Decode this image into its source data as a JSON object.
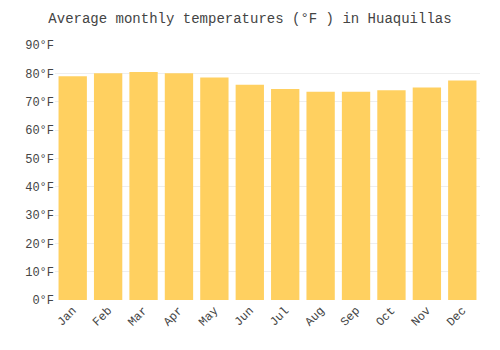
{
  "chart_data": {
    "type": "bar",
    "title": "Average monthly temperatures (°F ) in Huaquillas",
    "categories": [
      "Jan",
      "Feb",
      "Mar",
      "Apr",
      "May",
      "Jun",
      "Jul",
      "Aug",
      "Sep",
      "Oct",
      "Nov",
      "Dec"
    ],
    "values": [
      79,
      80,
      80.5,
      80,
      78.5,
      76,
      74.5,
      73.5,
      73.5,
      74,
      75,
      77.5
    ],
    "color": "#FFD060",
    "ylim": [
      0,
      90
    ],
    "yticks": [
      {
        "value": 0,
        "label": "0°F"
      },
      {
        "value": 10,
        "label": "10°F"
      },
      {
        "value": 20,
        "label": "20°F"
      },
      {
        "value": 30,
        "label": "30°F"
      },
      {
        "value": 40,
        "label": "40°F"
      },
      {
        "value": 50,
        "label": "50°F"
      },
      {
        "value": 60,
        "label": "60°F"
      },
      {
        "value": 70,
        "label": "70°F"
      },
      {
        "value": 80,
        "label": "80°F"
      },
      {
        "value": 90,
        "label": "90°F"
      }
    ],
    "grid": true
  }
}
